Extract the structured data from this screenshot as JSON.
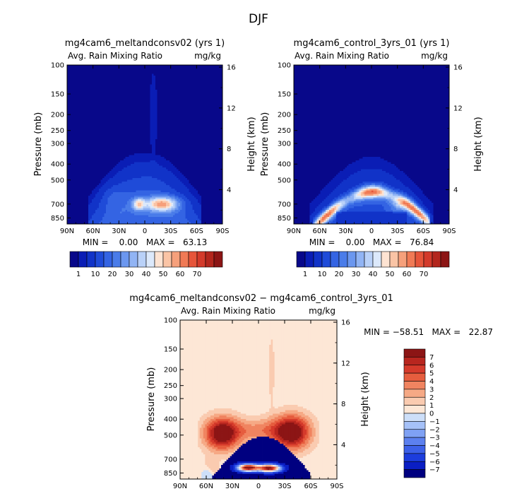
{
  "title": "DJF",
  "colors": {
    "abs_scale": [
      "#08088a",
      "#0a1db5",
      "#1133c8",
      "#1f4bd8",
      "#3464e3",
      "#4a7ce9",
      "#6b97ef",
      "#91b4f4",
      "#b9d1f8",
      "#dce9fb",
      "#fde3d2",
      "#fac4a5",
      "#f6a07b",
      "#f07a55",
      "#e6553a",
      "#d33a2b",
      "#b3261d",
      "#8c1515"
    ],
    "diff_scale": [
      "#000080",
      "#0a1ec4",
      "#1c3ddd",
      "#3c60e8",
      "#5c80ef",
      "#7fa1f4",
      "#a5c1f8",
      "#cddff9",
      "#fde7d6",
      "#facbb0",
      "#f6a985",
      "#f08460",
      "#e65d3e",
      "#d53a2b",
      "#b8261f",
      "#8c1515"
    ]
  },
  "chart_data": [
    {
      "type": "heatmap",
      "title": "mg4cam6_meltandconsv02 (yrs 1)",
      "left_label": "Avg. Rain Mixing Ratio",
      "right_label": "mg/kg",
      "ylabel": "Pressure (mb)",
      "y2label": "Height (km)",
      "x_ticks": [
        "90N",
        "60N",
        "30N",
        "0",
        "30S",
        "60S",
        "90S"
      ],
      "x_range": [
        90,
        -90
      ],
      "y_ticks": [
        100,
        150,
        200,
        250,
        300,
        400,
        500,
        700,
        850
      ],
      "y_range": [
        100,
        925
      ],
      "y_scale": "log",
      "y2_ticks": [
        4,
        8,
        12,
        16
      ],
      "stats_text": "MIN =    0.00   MAX =   63.13",
      "min": 0.0,
      "max": 63.13,
      "colorbar_labels": [
        "1",
        "10",
        "20",
        "30",
        "40",
        "50",
        "60",
        "70"
      ],
      "levels": [
        1,
        5,
        10,
        15,
        20,
        25,
        30,
        35,
        40,
        45,
        50,
        55,
        60,
        65,
        70
      ]
    },
    {
      "type": "heatmap",
      "title": "mg4cam6_control_3yrs_01 (yrs 1)",
      "left_label": "Avg. Rain Mixing Ratio",
      "right_label": "mg/kg",
      "ylabel": "Pressure (mb)",
      "y2label": "Height (km)",
      "x_ticks": [
        "90N",
        "60N",
        "30N",
        "0",
        "30S",
        "60S",
        "90S"
      ],
      "x_range": [
        90,
        -90
      ],
      "y_ticks": [
        100,
        150,
        200,
        250,
        300,
        400,
        500,
        700,
        850
      ],
      "y_range": [
        100,
        925
      ],
      "y_scale": "log",
      "y2_ticks": [
        4,
        8,
        12,
        16
      ],
      "stats_text": "MIN =    0.00   MAX =   76.84",
      "min": 0.0,
      "max": 76.84,
      "colorbar_labels": [
        "1",
        "10",
        "20",
        "30",
        "40",
        "50",
        "60",
        "70"
      ],
      "levels": [
        1,
        5,
        10,
        15,
        20,
        25,
        30,
        35,
        40,
        45,
        50,
        55,
        60,
        65,
        70
      ]
    },
    {
      "type": "heatmap",
      "title": "mg4cam6_meltandconsv02 − mg4cam6_control_3yrs_01",
      "left_label": "Avg. Rain Mixing Ratio",
      "right_label": "mg/kg",
      "ylabel": "Pressure (mb)",
      "y2label": "Height (km)",
      "x_ticks": [
        "90N",
        "60N",
        "30N",
        "0",
        "30S",
        "60S",
        "90S"
      ],
      "x_range": [
        90,
        -90
      ],
      "y_ticks": [
        100,
        150,
        200,
        250,
        300,
        400,
        500,
        700,
        850
      ],
      "y_range": [
        100,
        925
      ],
      "y_scale": "log",
      "y2_ticks": [
        4,
        8,
        12,
        16
      ],
      "stats_text": "MIN = −58.51   MAX =   22.87",
      "min": -58.51,
      "max": 22.87,
      "colorbar_labels": [
        "7",
        "6",
        "5",
        "4",
        "3",
        "2",
        "1",
        "0",
        "−1",
        "−2",
        "−3",
        "−4",
        "−5",
        "−6",
        "−7"
      ]
    }
  ]
}
